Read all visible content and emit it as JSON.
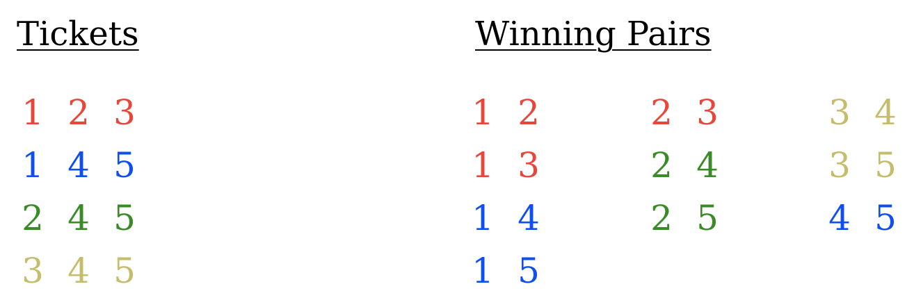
{
  "tickets_heading": "Tickets",
  "pairs_heading": "Winning Pairs",
  "colors": {
    "red": "#e8463a",
    "blue": "#0f4ff0",
    "green": "#3a8a28",
    "olive": "#c4bd6c"
  },
  "tickets": [
    {
      "numbers": [
        "1",
        "2",
        "3"
      ],
      "color": "red"
    },
    {
      "numbers": [
        "1",
        "4",
        "5"
      ],
      "color": "blue"
    },
    {
      "numbers": [
        "2",
        "4",
        "5"
      ],
      "color": "green"
    },
    {
      "numbers": [
        "3",
        "4",
        "5"
      ],
      "color": "olive"
    }
  ],
  "pair_columns": [
    [
      {
        "numbers": [
          "1",
          "2"
        ],
        "color": "red"
      },
      {
        "numbers": [
          "1",
          "3"
        ],
        "color": "red"
      },
      {
        "numbers": [
          "1",
          "4"
        ],
        "color": "blue"
      },
      {
        "numbers": [
          "1",
          "5"
        ],
        "color": "blue"
      }
    ],
    [
      {
        "numbers": [
          "2",
          "3"
        ],
        "color": "red"
      },
      {
        "numbers": [
          "2",
          "4"
        ],
        "color": "green"
      },
      {
        "numbers": [
          "2",
          "5"
        ],
        "color": "green"
      }
    ],
    [
      {
        "numbers": [
          "3",
          "4"
        ],
        "color": "olive"
      },
      {
        "numbers": [
          "3",
          "5"
        ],
        "color": "olive"
      },
      {
        "numbers": [
          "4",
          "5"
        ],
        "color": "blue"
      }
    ]
  ]
}
